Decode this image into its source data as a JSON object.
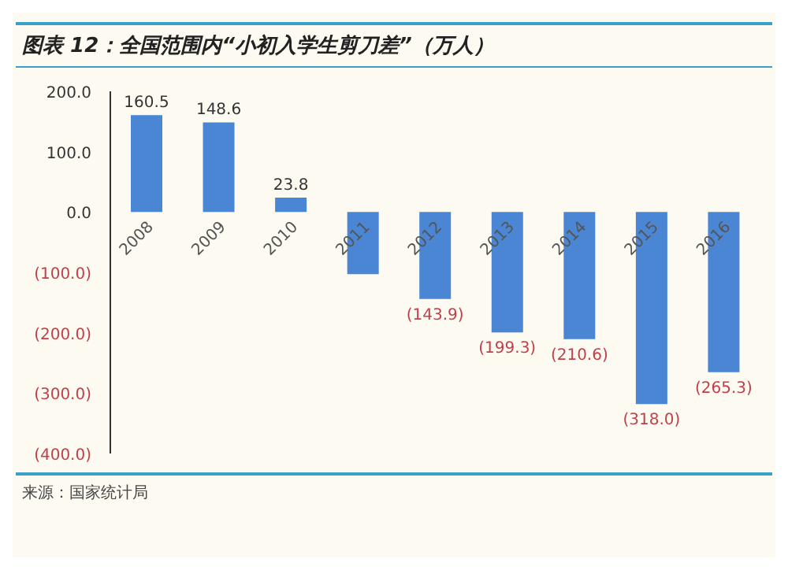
{
  "chart_data": {
    "type": "bar",
    "title": "图表 12：全国范围内“小初入学生剪刀差”（万人）",
    "categories": [
      "2008",
      "2009",
      "2010",
      "2011",
      "2012",
      "2013",
      "2014",
      "2015",
      "2016"
    ],
    "values": [
      160.5,
      148.6,
      23.8,
      -103,
      -143.9,
      -199.3,
      -210.6,
      -318.0,
      -265.3
    ],
    "value_labels": [
      "160.5",
      "148.6",
      "23.8",
      null,
      "(143.9)",
      "(199.3)",
      "(210.6)",
      "(318.0)",
      "(265.3)"
    ],
    "color": "#4a86d4",
    "ylim": [
      -400,
      200
    ],
    "yticks": [
      {
        "value": -400,
        "label": "(400.0)"
      },
      {
        "value": -300,
        "label": "(300.0)"
      },
      {
        "value": -200,
        "label": "(200.0)"
      },
      {
        "value": -100,
        "label": "(100.0)"
      },
      {
        "value": 0,
        "label": "0.0"
      },
      {
        "value": 100,
        "label": "100.0"
      },
      {
        "value": 200,
        "label": "200.0"
      }
    ],
    "grid": false,
    "annotations": [
      "来源：国家统计局"
    ]
  }
}
